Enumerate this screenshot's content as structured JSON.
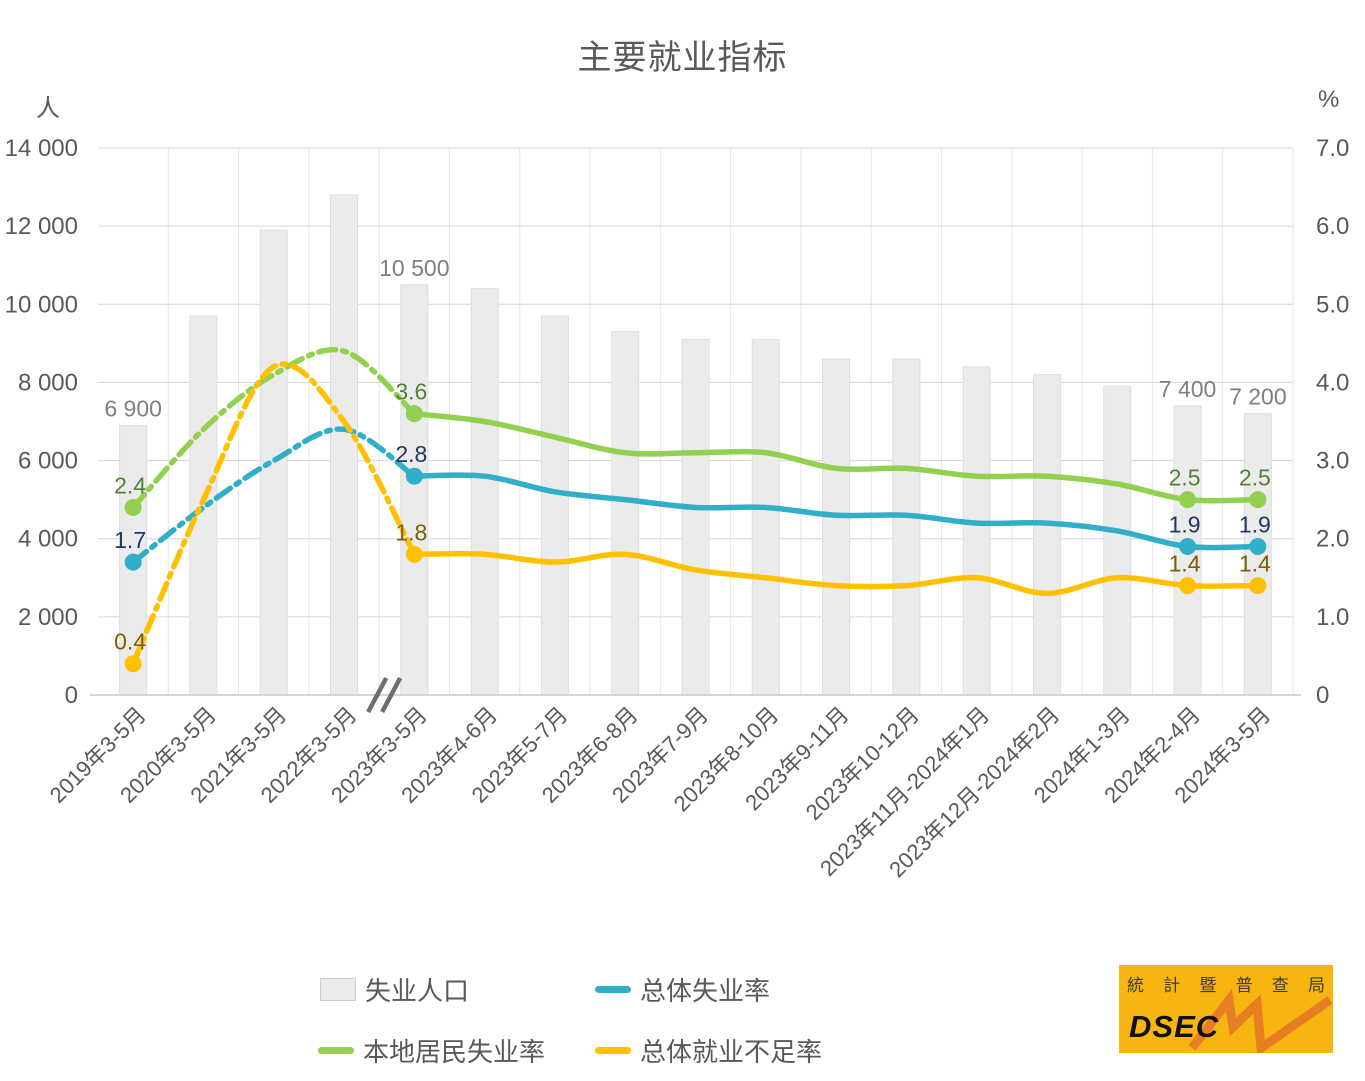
{
  "title": "主要就业指标",
  "left_axis": {
    "unit": "人",
    "ticks": [
      "14 000",
      "12 000",
      "10 000",
      "8 000",
      "6 000",
      "4 000",
      "2 000",
      "0"
    ],
    "max": 14000
  },
  "right_axis": {
    "unit": "%",
    "ticks": [
      "7.0",
      "6.0",
      "5.0",
      "4.0",
      "3.0",
      "2.0",
      "1.0",
      "0"
    ],
    "max": 7
  },
  "chart_data": {
    "type": "bar+line combo",
    "title": "主要就业指标",
    "categories": [
      "2019年3-5月",
      "2020年3-5月",
      "2021年3-5月",
      "2022年3-5月",
      "2023年3-5月",
      "2023年4-6月",
      "2023年5-7月",
      "2023年6-8月",
      "2023年7-9月",
      "2023年8-10月",
      "2023年9-11月",
      "2023年10-12月",
      "2023年11月-2024年1月",
      "2023年12月-2024年2月",
      "2024年1-3月",
      "2024年2-4月",
      "2024年3-5月"
    ],
    "bar_series": {
      "name": "失业人口",
      "axis": "left",
      "color": "#EBEBEB",
      "border_color": "#DEDEDE",
      "label_color": "#7F7F7F",
      "values": [
        6900,
        9700,
        11900,
        12800,
        10500,
        10400,
        9700,
        9300,
        9100,
        9100,
        8600,
        8600,
        8400,
        8200,
        7900,
        7400,
        7200
      ],
      "labels": {
        "0": "6 900",
        "4": "10 500",
        "15": "7 400",
        "16": "7 200"
      }
    },
    "line_series": [
      {
        "name": "总体失业率",
        "axis": "right",
        "color": "#31AFC9",
        "label_color": "#1F3864",
        "values": [
          1.7,
          2.4,
          3.0,
          3.4,
          2.8,
          2.8,
          2.6,
          2.5,
          2.4,
          2.4,
          2.3,
          2.3,
          2.2,
          2.2,
          2.1,
          1.9,
          1.9
        ]
      },
      {
        "name": "本地居民失业率",
        "axis": "right",
        "color": "#92D050",
        "label_color": "#538135",
        "values": [
          2.4,
          3.4,
          4.1,
          4.4,
          3.6,
          3.5,
          3.3,
          3.1,
          3.1,
          3.1,
          2.9,
          2.9,
          2.8,
          2.8,
          2.7,
          2.5,
          2.5
        ]
      },
      {
        "name": "总体就业不足率",
        "axis": "right",
        "color": "#FFC000",
        "label_color": "#7F6000",
        "values": [
          0.4,
          2.5,
          4.2,
          3.5,
          1.8,
          1.8,
          1.7,
          1.8,
          1.6,
          1.5,
          1.4,
          1.4,
          1.5,
          1.3,
          1.5,
          1.4,
          1.4
        ]
      }
    ],
    "labeled_indices": [
      0,
      4,
      15,
      16
    ],
    "dashed_until_index": 4,
    "axis_break_after_index": 3,
    "ylim_left": [
      0,
      14000
    ],
    "ylim_right": [
      0,
      7
    ],
    "grid": true,
    "legend_position": "bottom"
  },
  "legend": {
    "items": [
      {
        "label": "失业人口",
        "type": "box"
      },
      {
        "label": "总体失业率",
        "type": "line"
      },
      {
        "label": "本地居民失业率",
        "type": "line"
      },
      {
        "label": "总体就业不足率",
        "type": "line"
      }
    ]
  },
  "logo": {
    "cn_text": "統計暨普查局",
    "latin": "DSEC",
    "bg_color": "#F7B512",
    "zigzag_color": "#E87E23",
    "text_color": "#3E3C2E"
  },
  "colors": {
    "grid_h": "#D6D6D6",
    "grid_v": "#E6E6E6",
    "axis_line": "#C9C9C9",
    "axis_text": "#595959",
    "break_mark": "#6E6E6E"
  }
}
